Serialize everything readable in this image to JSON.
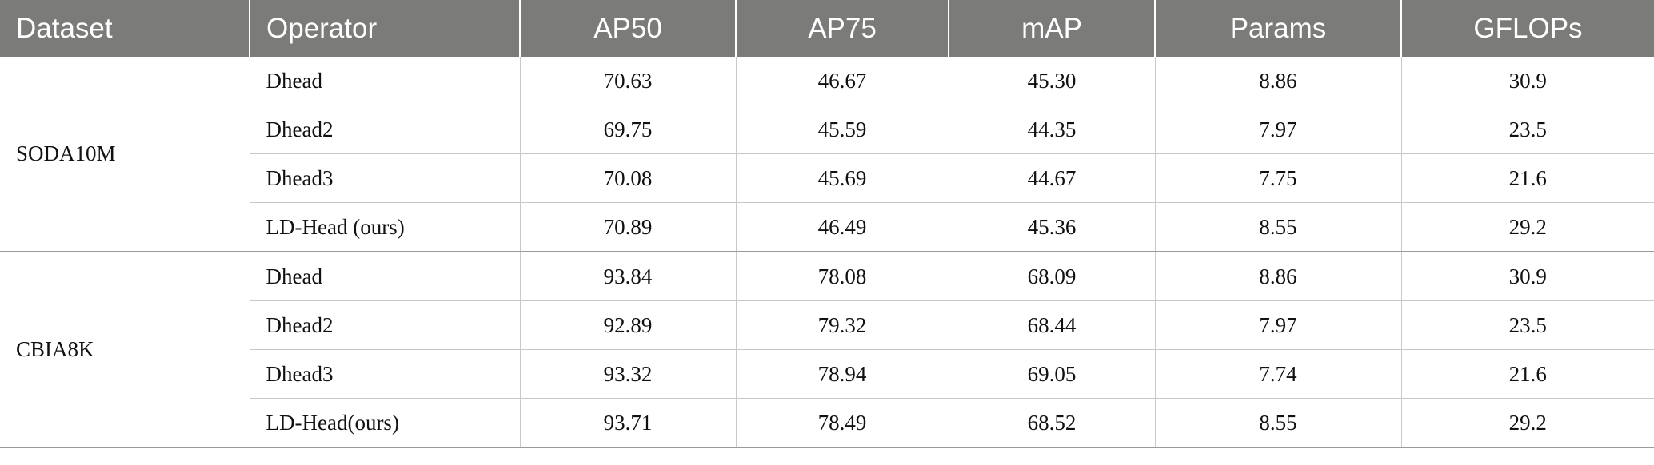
{
  "headers": [
    "Dataset",
    "Operator",
    "AP50",
    "AP75",
    "mAP",
    "Params",
    "GFLOPs"
  ],
  "groups": [
    {
      "dataset": "SODA10M",
      "rows": [
        {
          "operator": "Dhead",
          "ap50": "70.63",
          "ap75": "46.67",
          "map": "45.30",
          "params": "8.86",
          "gflops": "30.9"
        },
        {
          "operator": "Dhead2",
          "ap50": "69.75",
          "ap75": "45.59",
          "map": "44.35",
          "params": "7.97",
          "gflops": "23.5"
        },
        {
          "operator": "Dhead3",
          "ap50": "70.08",
          "ap75": "45.69",
          "map": "44.67",
          "params": "7.75",
          "gflops": "21.6"
        },
        {
          "operator": "LD-Head (ours)",
          "ap50": "70.89",
          "ap75": "46.49",
          "map": "45.36",
          "params": "8.55",
          "gflops": "29.2"
        }
      ]
    },
    {
      "dataset": "CBIA8K",
      "rows": [
        {
          "operator": "Dhead",
          "ap50": "93.84",
          "ap75": "78.08",
          "map": "68.09",
          "params": "8.86",
          "gflops": "30.9"
        },
        {
          "operator": "Dhead2",
          "ap50": "92.89",
          "ap75": "79.32",
          "map": "68.44",
          "params": "7.97",
          "gflops": "23.5"
        },
        {
          "operator": "Dhead3",
          "ap50": "93.32",
          "ap75": "78.94",
          "map": "69.05",
          "params": "7.74",
          "gflops": "21.6"
        },
        {
          "operator": "LD-Head(ours)",
          "ap50": "93.71",
          "ap75": "78.49",
          "map": "68.52",
          "params": "8.55",
          "gflops": "29.2"
        }
      ]
    }
  ]
}
